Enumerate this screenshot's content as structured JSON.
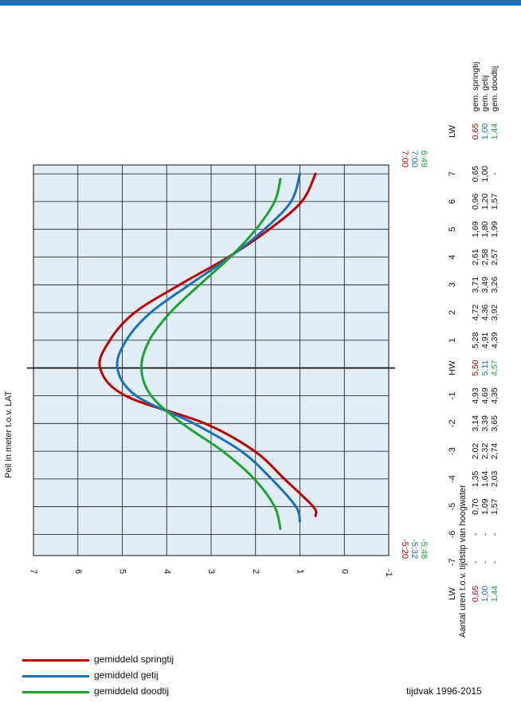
{
  "colors": {
    "spring": "#c00000",
    "avg": "#1f6fb6",
    "neap": "#1aa530",
    "plot_bg": "#e1eef8",
    "topbar": "#1f6fb6"
  },
  "chart_data": {
    "type": "line",
    "title": "",
    "ylabel": "Peil in meter t.o.v. LAT",
    "xlabel": "Aantal uren t.o.v. tijdstip van hoogwater",
    "ylim": [
      -1,
      7
    ],
    "x_ticks": [
      "-7",
      "-6",
      "-5",
      "-4",
      "-3",
      "-2",
      "-1",
      "HW",
      "1",
      "2",
      "3",
      "4",
      "5",
      "6",
      "7"
    ],
    "y_ticks": [
      "7",
      "6",
      "5",
      "4",
      "3",
      "2",
      "1",
      "0",
      "-1"
    ],
    "grid": true,
    "series": [
      {
        "name": "gem. springtij",
        "key": "spring",
        "lw": "0,65",
        "values": [
          "-",
          "-",
          "0,70",
          "1,35",
          "2,02",
          "3,14",
          "4,93",
          "5,50",
          "5,28",
          "4,72",
          "3,71",
          "2,61",
          "1,69",
          "0,96",
          "0,65"
        ],
        "lw_times": [
          "-5:20",
          "7:00"
        ]
      },
      {
        "name": "gem. getij",
        "key": "avg",
        "lw": "1,00",
        "values": [
          "-",
          "-",
          "1,09",
          "1,64",
          "2,32",
          "3,39",
          "4,69",
          "5,11",
          "4,91",
          "4,36",
          "3,49",
          "2,58",
          "1,80",
          "1,20",
          "1,00"
        ],
        "lw_times": [
          "-5:32",
          "7:00"
        ]
      },
      {
        "name": "gem. doodtij",
        "key": "neap",
        "lw": "1,44",
        "values": [
          "-",
          "-",
          "1,57",
          "2,03",
          "2,74",
          "3,65",
          "4,35",
          "4,57",
          "4,39",
          "3,92",
          "3,26",
          "2,57",
          "1,99",
          "1,57",
          "-"
        ],
        "lw_times": [
          "-5:48",
          "6:49"
        ]
      }
    ]
  },
  "legend": {
    "spring": "gemiddeld springtij",
    "avg": "gemiddeld getij",
    "neap": "gemiddeld doodtij"
  },
  "period": "tijdvak   1996-2015",
  "lw_label": "LW"
}
